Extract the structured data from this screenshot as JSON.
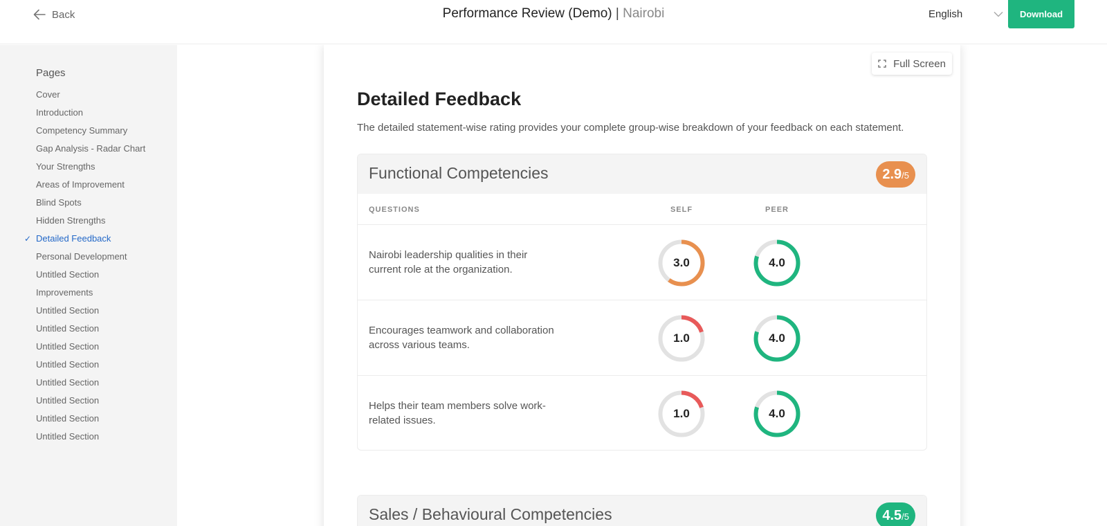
{
  "header": {
    "back_label": "Back",
    "title": "Performance Review (Demo)",
    "separator": "|",
    "subtitle": "Nairobi",
    "language": "English",
    "download_label": "Download"
  },
  "sidebar": {
    "title": "Pages",
    "items": [
      {
        "label": "Cover"
      },
      {
        "label": "Introduction"
      },
      {
        "label": "Competency Summary"
      },
      {
        "label": "Gap Analysis - Radar Chart"
      },
      {
        "label": "Your Strengths"
      },
      {
        "label": "Areas of Improvement"
      },
      {
        "label": "Blind Spots"
      },
      {
        "label": "Hidden Strengths"
      },
      {
        "label": "Detailed Feedback",
        "active": true
      },
      {
        "label": "Personal Development"
      },
      {
        "label": "Untitled Section"
      },
      {
        "label": "Improvements"
      },
      {
        "label": "Untitled Section"
      },
      {
        "label": "Untitled Section"
      },
      {
        "label": "Untitled Section"
      },
      {
        "label": "Untitled Section"
      },
      {
        "label": "Untitled Section"
      },
      {
        "label": "Untitled Section"
      },
      {
        "label": "Untitled Section"
      },
      {
        "label": "Untitled Section"
      }
    ]
  },
  "main": {
    "fullscreen_label": "Full Screen",
    "title": "Detailed Feedback",
    "description": "The detailed statement-wise rating provides your complete group-wise breakdown of your feedback on each statement.",
    "sections": [
      {
        "title": "Functional Competencies",
        "score": "2.9",
        "out_of": "/5",
        "badge_color": "#e8904f",
        "columns": {
          "questions": "QUESTIONS",
          "self": "SELF",
          "peer": "PEER"
        },
        "rows": [
          {
            "question": "Nairobi leadership qualities in their current role at the organization.",
            "self": 3.0,
            "self_label": "3.0",
            "peer": 4.0,
            "peer_label": "4.0"
          },
          {
            "question": "Encourages teamwork and collaboration across various teams.",
            "self": 1.0,
            "self_label": "1.0",
            "peer": 4.0,
            "peer_label": "4.0"
          },
          {
            "question": "Helps their team members solve work-related issues.",
            "self": 1.0,
            "self_label": "1.0",
            "peer": 4.0,
            "peer_label": "4.0"
          }
        ]
      },
      {
        "title": "Sales / Behavioural Competencies",
        "score": "4.5",
        "out_of": "/5",
        "badge_color": "#1fb57f"
      }
    ]
  },
  "rating_scale_max": 5,
  "colors": {
    "high": "#1fb57f",
    "medium": "#e8904f",
    "low": "#e85a5a",
    "track": "#e2e2e2",
    "accent": "#1fb57f",
    "active_nav": "#2368c8"
  }
}
